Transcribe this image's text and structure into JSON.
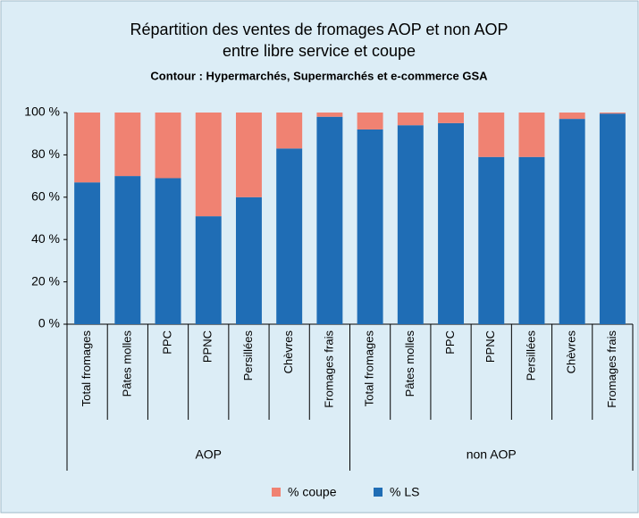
{
  "chart_data": {
    "type": "stacked_bar",
    "title": [
      "Répartition des ventes de fromages AOP et non AOP",
      "entre libre service et coupe"
    ],
    "subtitle": "Contour : Hypermarchés, Supermarchés et e-commerce GSA",
    "groups": [
      {
        "label": "AOP",
        "categories": [
          "Total fromages",
          "Pâtes molles",
          "PPC",
          "PPNC",
          "Persillées",
          "Chèvres",
          "Fromages frais"
        ]
      },
      {
        "label": "non AOP",
        "categories": [
          "Total fromages",
          "Pâtes molles",
          "PPC",
          "PPNC",
          "Persillées",
          "Chèvres",
          "Fromages frais"
        ]
      }
    ],
    "series": [
      {
        "name": "% LS",
        "color": "#1f6db5",
        "values": [
          67,
          70,
          69,
          51,
          60,
          83,
          98,
          92,
          94,
          95,
          79,
          79,
          97,
          99.5
        ]
      },
      {
        "name": "% coupe",
        "color": "#f08272",
        "values": [
          33,
          30,
          31,
          49,
          40,
          17,
          2,
          8,
          6,
          5,
          21,
          21,
          3,
          0.5
        ]
      }
    ],
    "legend_order": [
      1,
      0
    ],
    "ylim": [
      0,
      100
    ],
    "yticks": [
      {
        "value": 0,
        "label": "0 %"
      },
      {
        "value": 20,
        "label": "20 %"
      },
      {
        "value": 40,
        "label": "40 %"
      },
      {
        "value": 60,
        "label": "60 %"
      },
      {
        "value": 80,
        "label": "80 %"
      },
      {
        "value": 100,
        "label": "100 %"
      }
    ]
  }
}
